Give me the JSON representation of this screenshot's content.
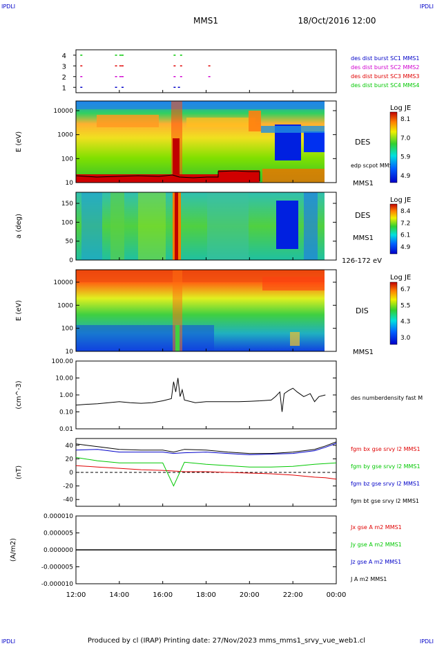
{
  "corner_labels": {
    "top_left": "IPDLI",
    "top_right": "IPDLI",
    "bottom_left": "IPDLI",
    "bottom_right": "IPDLI"
  },
  "header": {
    "spacecraft": "MMS1",
    "datetime": "18/Oct/2016 12:00"
  },
  "footer": {
    "text": "Produced by cl (IRAP)   Printing date: 27/Nov/2023   mms_mms1_srvy_vue_web1.cl"
  },
  "colors": {
    "spectrogram_bg": "#3fd23f",
    "red": "#e00000",
    "green": "#00c800",
    "blue": "#0000c8",
    "magenta": "#d000d0",
    "dark_blue": "#00008b"
  },
  "chart_data": [
    {
      "type": "scatter",
      "title": "burst availability",
      "x_range": [
        "12:00",
        "00:00"
      ],
      "yticks": [
        "1",
        "2",
        "3",
        "4"
      ],
      "ylim": [
        0.5,
        4.5
      ],
      "legend": [
        {
          "label": "des dist burst SC1 MMS1",
          "color": "#0000c8"
        },
        {
          "label": "des dist burst SC2 MMS2",
          "color": "#d000d0"
        },
        {
          "label": "des dist burst SC3 MMS3",
          "color": "#e00000"
        },
        {
          "label": "des dist burst SC4 MMS4",
          "color": "#00c800"
        }
      ],
      "series": [
        {
          "name": "SC1",
          "y": 1,
          "color": "#0000c8",
          "x_hours": [
            12.2,
            13.8,
            14.1,
            16.5,
            16.7
          ]
        },
        {
          "name": "SC2",
          "y": 2,
          "color": "#d000d0",
          "x_hours": [
            12.2,
            13.8,
            14.0,
            14.1,
            16.5,
            16.8,
            18.1
          ]
        },
        {
          "name": "SC3",
          "y": 3,
          "color": "#e00000",
          "x_hours": [
            12.2,
            13.8,
            14.0,
            14.1,
            16.5,
            16.8,
            18.1
          ]
        },
        {
          "name": "SC4",
          "y": 4,
          "color": "#00c800",
          "x_hours": [
            12.2,
            13.8,
            14.0,
            14.1,
            16.5,
            16.8
          ]
        }
      ]
    },
    {
      "type": "heatmap",
      "ylabel": "E (eV)",
      "yticks": [
        "10",
        "100",
        "1000",
        "10000"
      ],
      "right_label": "DES",
      "overlay_label": "edp scpot MMS1",
      "bottom_label": "MMS1",
      "colorbar": {
        "label": "Log JE",
        "ticks": [
          "8.1",
          "7.0",
          "5.9",
          "4.9"
        ]
      }
    },
    {
      "type": "heatmap",
      "ylabel": "a (deg)",
      "yticks": [
        "0",
        "50",
        "100",
        "150"
      ],
      "right_label": "DES",
      "right_label2": "MMS1",
      "bottom_label": "126-172 eV",
      "colorbar": {
        "label": "Log JE",
        "ticks": [
          "8.4",
          "7.2",
          "6.1",
          "4.9"
        ]
      }
    },
    {
      "type": "heatmap",
      "ylabel": "E (eV)",
      "yticks": [
        "10",
        "100",
        "1000",
        "10000"
      ],
      "right_label": "DIS",
      "bottom_label": "MMS1",
      "colorbar": {
        "label": "Log JE",
        "ticks": [
          "6.7",
          "5.5",
          "4.3",
          "3.0"
        ]
      }
    },
    {
      "type": "line",
      "ylabel": "(cm^-3)",
      "yticks": [
        "0.01",
        "0.10",
        "1.00",
        "10.00",
        "100.00"
      ],
      "ylim": [
        0.01,
        100
      ],
      "yscale": "log",
      "legend": [
        {
          "label": "des numberdensity fast M",
          "color": "#000000"
        }
      ],
      "series": [
        {
          "name": "des numberdensity fast",
          "color": "#000000",
          "x_hours": [
            12.0,
            12.5,
            13.0,
            13.5,
            14.0,
            14.5,
            15.0,
            15.5,
            16.0,
            16.4,
            16.5,
            16.6,
            16.7,
            16.8,
            16.9,
            17.0,
            17.5,
            18.0,
            18.5,
            19.0,
            19.5,
            20.0,
            20.5,
            21.0,
            21.2,
            21.4,
            21.5,
            21.6,
            21.8,
            22.0,
            22.2,
            22.5,
            22.8,
            23.0,
            23.2,
            23.5
          ],
          "values": [
            0.25,
            0.28,
            0.3,
            0.35,
            0.4,
            0.35,
            0.32,
            0.35,
            0.45,
            0.6,
            6.0,
            1.5,
            10.0,
            0.8,
            2.0,
            0.5,
            0.35,
            0.4,
            0.4,
            0.4,
            0.4,
            0.42,
            0.45,
            0.5,
            0.8,
            1.5,
            0.1,
            1.2,
            1.8,
            2.5,
            1.5,
            0.8,
            1.2,
            0.4,
            0.8,
            1.0
          ]
        }
      ]
    },
    {
      "type": "line",
      "ylabel": "(nT)",
      "yticks": [
        "-40",
        "-20",
        "0",
        "20",
        "40"
      ],
      "ylim": [
        -50,
        50
      ],
      "legend": [
        {
          "label": "fgm bx gse srvy l2 MMS1",
          "color": "#e00000"
        },
        {
          "label": "fgm by gse srvy l2 MMS1",
          "color": "#00c800"
        },
        {
          "label": "fgm bz gse srvy l2 MMS1",
          "color": "#0000c8"
        },
        {
          "label": "fgm bt gse srvy l2 MMS1",
          "color": "#000000"
        }
      ],
      "series": [
        {
          "name": "bx",
          "color": "#e00000",
          "x_hours": [
            12,
            13,
            14,
            15,
            16,
            16.5,
            17,
            18,
            19,
            20,
            21,
            22,
            23,
            23.5,
            24
          ],
          "values": [
            10,
            8,
            6,
            4,
            3,
            2,
            1,
            1,
            0,
            -1,
            -2,
            -4,
            -7,
            -8,
            -10
          ]
        },
        {
          "name": "by",
          "color": "#00c800",
          "x_hours": [
            12,
            13,
            14,
            15,
            16,
            16.5,
            17,
            18,
            19,
            20,
            21,
            22,
            23,
            23.5,
            24
          ],
          "values": [
            22,
            17,
            14,
            14,
            14,
            -20,
            15,
            12,
            10,
            8,
            8,
            9,
            12,
            13,
            14
          ]
        },
        {
          "name": "bz",
          "color": "#0000c8",
          "x_hours": [
            12,
            13,
            14,
            15,
            16,
            16.5,
            17,
            18,
            19,
            20,
            21,
            22,
            23,
            23.5,
            24
          ],
          "values": [
            33,
            34,
            30,
            30,
            30,
            28,
            29,
            30,
            28,
            26,
            27,
            28,
            32,
            37,
            43
          ]
        },
        {
          "name": "bt",
          "color": "#000000",
          "x_hours": [
            12,
            13,
            14,
            15,
            16,
            16.5,
            17,
            18,
            19,
            20,
            21,
            22,
            23,
            23.5,
            24
          ],
          "values": [
            42,
            38,
            34,
            33,
            33,
            30,
            34,
            33,
            30,
            28,
            28,
            30,
            34,
            39,
            45
          ]
        }
      ],
      "zero_line": true
    },
    {
      "type": "line",
      "ylabel": "(A/m2)",
      "yticks": [
        "-0.000010",
        "-0.000005",
        "0.000000",
        "0.000005",
        "0.000010"
      ],
      "ylim": [
        -1e-05,
        1e-05
      ],
      "legend": [
        {
          "label": "Jx gse A m2 MMS1",
          "color": "#e00000"
        },
        {
          "label": "Jy gse A m2 MMS1",
          "color": "#00c800"
        },
        {
          "label": "Jz gse A m2 MMS1",
          "color": "#0000c8"
        },
        {
          "label": "J A m2 MMS1",
          "color": "#000000"
        }
      ],
      "series": [
        {
          "name": "J",
          "color": "#000000",
          "x_hours": [
            12,
            24
          ],
          "values": [
            0,
            0
          ]
        }
      ]
    }
  ],
  "x_axis": {
    "ticks": [
      "12:00",
      "14:00",
      "16:00",
      "18:00",
      "20:00",
      "22:00",
      "00:00"
    ]
  }
}
